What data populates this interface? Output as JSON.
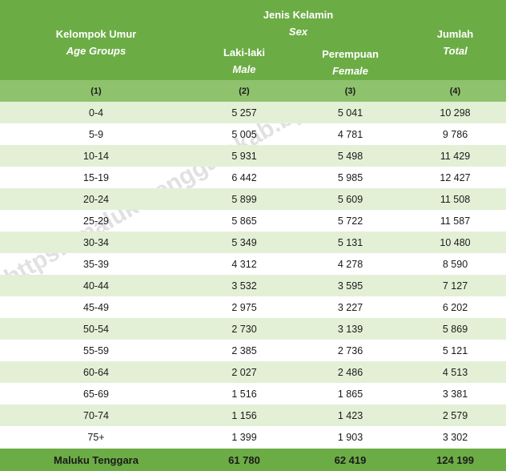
{
  "header": {
    "age_id": "Kelompok Umur",
    "age_en": "Age Groups",
    "sex_id": "Jenis Kelamin",
    "sex_en": "Sex",
    "male_id": "Laki-laki",
    "male_en": "Male",
    "female_id": "Perempuan",
    "female_en": "Female",
    "total_id": "Jumlah",
    "total_en": "Total"
  },
  "column_numbers": [
    "(1)",
    "(2)",
    "(3)",
    "(4)"
  ],
  "rows": [
    {
      "age": "0-4",
      "male": "5 257",
      "female": "5 041",
      "total": "10 298"
    },
    {
      "age": "5-9",
      "male": "5 005",
      "female": "4 781",
      "total": "9 786"
    },
    {
      "age": "10-14",
      "male": "5 931",
      "female": "5 498",
      "total": "11 429"
    },
    {
      "age": "15-19",
      "male": "6 442",
      "female": "5 985",
      "total": "12 427"
    },
    {
      "age": "20-24",
      "male": "5 899",
      "female": "5 609",
      "total": "11 508"
    },
    {
      "age": "25-29",
      "male": "5 865",
      "female": "5 722",
      "total": "11 587"
    },
    {
      "age": "30-34",
      "male": "5 349",
      "female": "5 131",
      "total": "10 480"
    },
    {
      "age": "35-39",
      "male": "4 312",
      "female": "4 278",
      "total": "8 590"
    },
    {
      "age": "40-44",
      "male": "3 532",
      "female": "3 595",
      "total": "7 127"
    },
    {
      "age": "45-49",
      "male": "2 975",
      "female": "3 227",
      "total": "6 202"
    },
    {
      "age": "50-54",
      "male": "2 730",
      "female": "3 139",
      "total": "5 869"
    },
    {
      "age": "55-59",
      "male": "2 385",
      "female": "2 736",
      "total": "5 121"
    },
    {
      "age": "60-64",
      "male": "2 027",
      "female": "2 486",
      "total": "4 513"
    },
    {
      "age": "65-69",
      "male": "1 516",
      "female": "1 865",
      "total": "3 381"
    },
    {
      "age": "70-74",
      "male": "1 156",
      "female": "1 423",
      "total": "2 579"
    },
    {
      "age": "75+",
      "male": "1 399",
      "female": "1 903",
      "total": "3 302"
    }
  ],
  "total_row": {
    "label": "Maluku Tenggara",
    "male": "61 780",
    "female": "62 419",
    "total": "124 199"
  },
  "watermark": "https://malukutenggarakab.bps.go.id",
  "colors": {
    "header_green": "#6cac45",
    "subheader_green": "#8fc26d",
    "stripe": "#e3f0d6"
  }
}
